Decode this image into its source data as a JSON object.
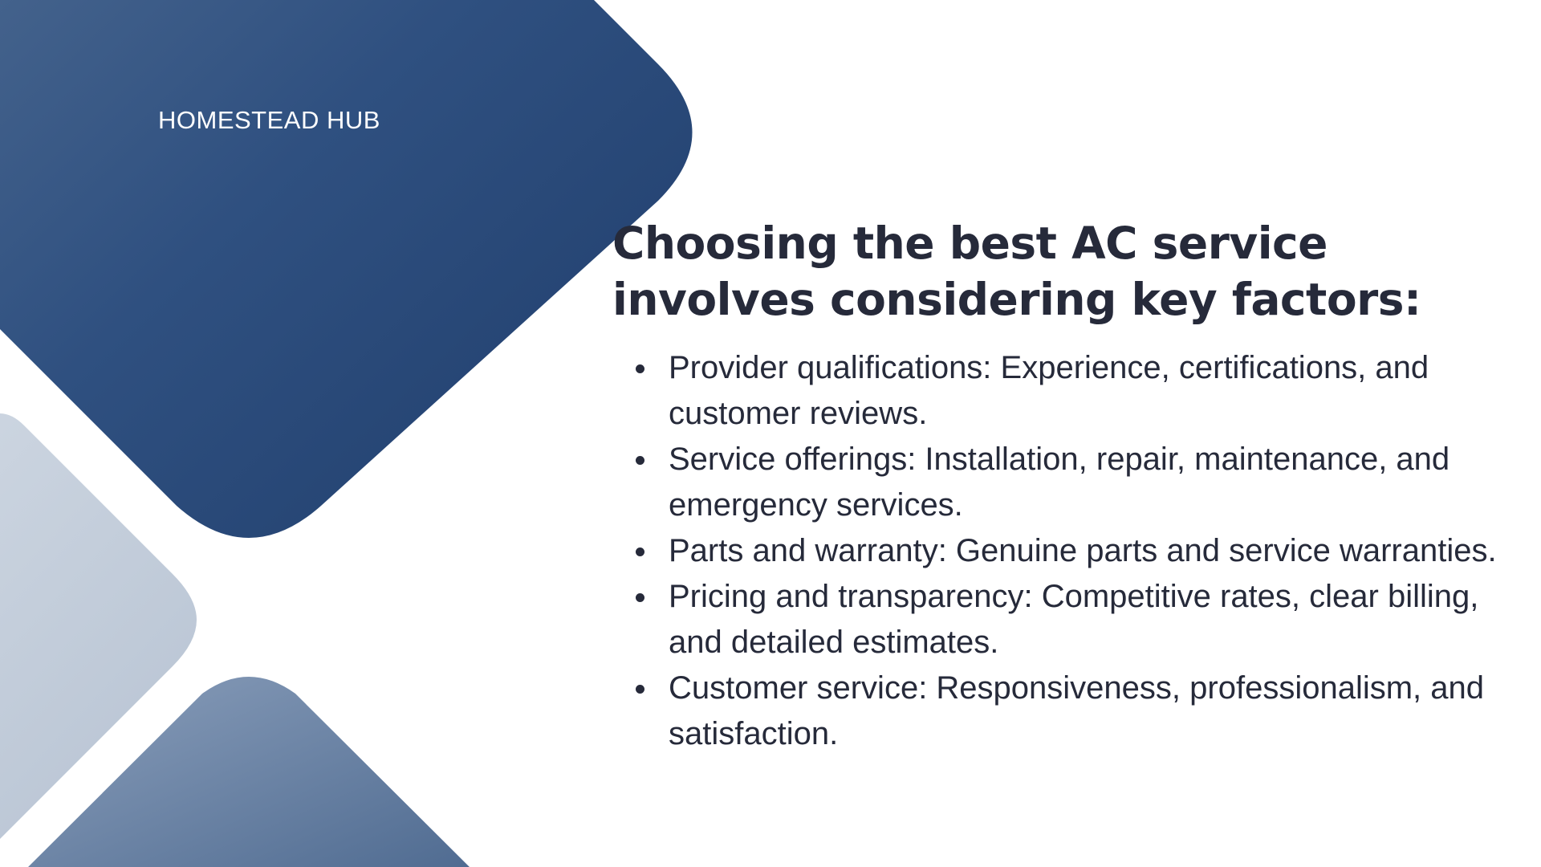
{
  "brand": {
    "name": "HOMESTEAD HUB"
  },
  "headline": "Choosing the best AC service involves considering key factors:",
  "factors": [
    "Provider qualifications: Experience, certifications, and customer reviews.",
    "Service offerings: Installation, repair, maintenance, and emergency services.",
    "Parts and warranty: Genuine parts and service warranties.",
    "Pricing and transparency: Competitive rates, clear billing, and detailed estimates.",
    "Customer service: Responsiveness, professionalism, and satisfaction."
  ],
  "colors": {
    "brand_navy": "#23406e",
    "brand_navy_light": "#57749a",
    "pale_blue": "#c3ccd9",
    "slate_blue": "#5c7698",
    "text": "#262a3a"
  }
}
